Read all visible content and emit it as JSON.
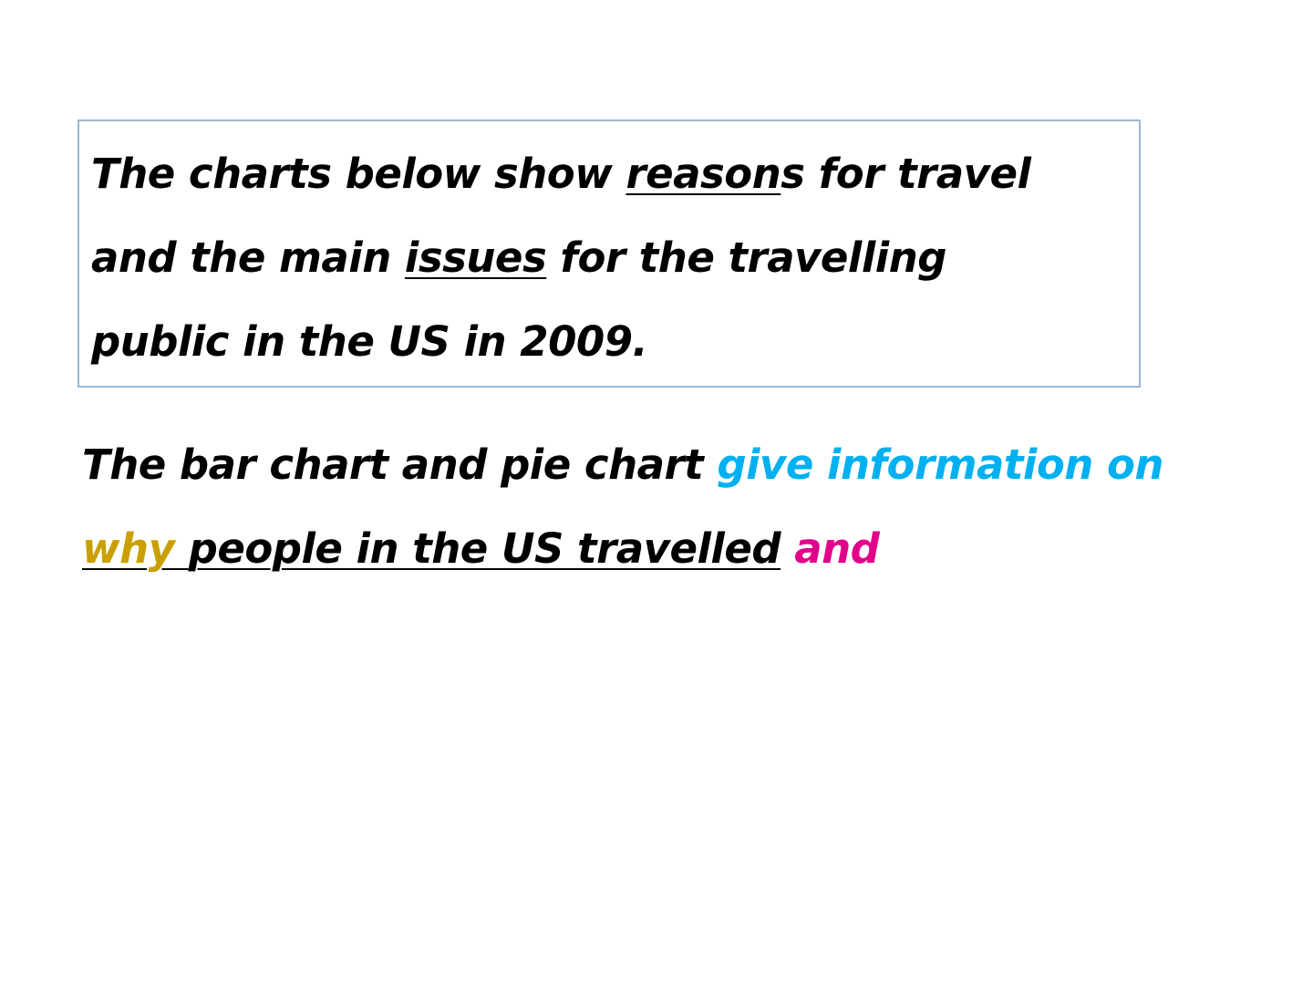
{
  "prompt": {
    "line1_a": "The charts below show ",
    "line1_underlined": "reason",
    "line1_b": "s for travel",
    "line2_a": "and the main ",
    "line2_underlined": "issues",
    "line2_b": " for the travelling",
    "line3": "public in the US in 2009."
  },
  "answer": {
    "line1_black": "The bar chart and pie chart ",
    "line1_blue": "give information on",
    "line2_gold": "why ",
    "line2_underlined": "people in the US travelled",
    "line2_pink": " and"
  },
  "colors": {
    "box_border": "#9bb7d4",
    "blue": "#00b0f0",
    "gold": "#c9a000",
    "pink": "#e0008a"
  }
}
